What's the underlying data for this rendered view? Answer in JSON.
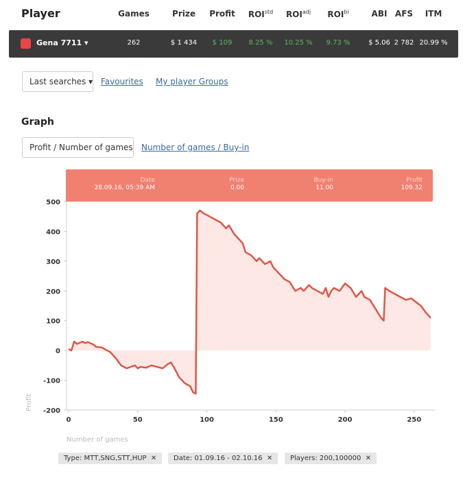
{
  "header": {
    "title": "Player",
    "columns": [
      "Games",
      "Prize",
      "Profit",
      {
        "base": "ROI",
        "sup": "std"
      },
      {
        "base": "ROI",
        "sup": "adj"
      },
      {
        "base": "ROI",
        "sup": "bi"
      },
      "ABI",
      "AFS",
      "ITM"
    ]
  },
  "player_row": {
    "name": "Gena 7711",
    "values": [
      "262",
      "$ 1 434",
      "$ 109",
      "8.25 %",
      "10.25 %",
      "9.73 %",
      "$ 5.06",
      "2 782",
      "20.99 %"
    ]
  },
  "nav": {
    "dropdown": "Last searches",
    "links": [
      "Favourites",
      "My player Groups"
    ]
  },
  "graph": {
    "title": "Graph",
    "tabs": [
      "Profit / Number of games",
      "Number of games / Buy-in"
    ],
    "tooltip": [
      {
        "label": "Date",
        "value": "28.09.16, 05:39 AM"
      },
      {
        "label": "Prize",
        "value": "0.00"
      },
      {
        "label": "Buy-in",
        "value": "11.00"
      },
      {
        "label": "Profit",
        "value": "109.32"
      }
    ]
  },
  "chart_data": {
    "type": "line",
    "x_label": "Number of games",
    "y_label": "Profit",
    "color": "#e05545",
    "fill": "#fde8e6",
    "grid": false,
    "xlim": [
      -1.5,
      265
    ],
    "ylim": [
      -200,
      500
    ],
    "xticks": [
      0,
      50,
      100,
      150,
      200,
      250
    ],
    "yticks": [
      -200,
      -100,
      0,
      100,
      200,
      300,
      400,
      500
    ],
    "x": [
      0,
      2,
      4,
      6,
      10,
      12,
      14,
      18,
      20,
      24,
      28,
      30,
      34,
      38,
      40,
      42,
      45,
      48,
      50,
      52,
      56,
      60,
      64,
      68,
      72,
      74,
      76,
      80,
      84,
      88,
      90,
      92,
      93,
      95,
      98,
      102,
      106,
      110,
      114,
      116,
      120,
      122,
      126,
      128,
      132,
      136,
      138,
      142,
      146,
      148,
      152,
      156,
      160,
      164,
      168,
      170,
      174,
      176,
      180,
      184,
      186,
      188,
      190,
      192,
      196,
      200,
      204,
      208,
      212,
      214,
      218,
      222,
      226,
      228,
      229,
      232,
      236,
      240,
      244,
      248,
      252,
      255,
      258,
      262
    ],
    "values": [
      5,
      0,
      30,
      22,
      30,
      25,
      28,
      20,
      12,
      10,
      0,
      -5,
      -25,
      -50,
      -55,
      -60,
      -55,
      -50,
      -60,
      -55,
      -58,
      -50,
      -55,
      -60,
      -45,
      -40,
      -55,
      -90,
      -110,
      -120,
      -140,
      -145,
      460,
      470,
      460,
      450,
      440,
      430,
      410,
      420,
      390,
      380,
      360,
      330,
      320,
      300,
      310,
      290,
      300,
      280,
      260,
      240,
      230,
      200,
      210,
      200,
      220,
      210,
      200,
      190,
      210,
      180,
      200,
      210,
      200,
      225,
      210,
      180,
      200,
      180,
      170,
      140,
      110,
      100,
      210,
      200,
      190,
      180,
      170,
      175,
      160,
      150,
      130,
      109
    ]
  },
  "filters": [
    "Type: MTT,SNG,STT,HUP",
    "Date: 01.09.16 - 02.10.16",
    "Players: 200,100000"
  ]
}
